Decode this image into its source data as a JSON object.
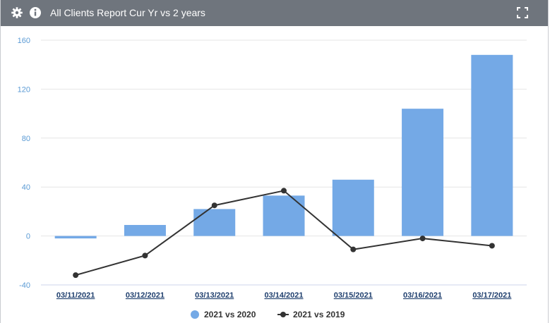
{
  "header": {
    "title": "All Clients Report Cur Yr vs 2 years",
    "icons": [
      "gear-icon",
      "info-icon",
      "expand-icon"
    ],
    "background": "#6f757d"
  },
  "chart_data": {
    "type": "bar",
    "categories": [
      "03/11/2021",
      "03/12/2021",
      "03/13/2021",
      "03/14/2021",
      "03/15/2021",
      "03/16/2021",
      "03/17/2021"
    ],
    "series": [
      {
        "name": "2021 vs 2020",
        "type": "bar",
        "color": "#74a9e6",
        "values": [
          -2,
          9,
          22,
          33,
          46,
          104,
          148
        ]
      },
      {
        "name": "2021 vs 2019",
        "type": "line",
        "color": "#333333",
        "values": [
          -32,
          -16,
          25,
          37,
          -11,
          -2,
          -8
        ]
      }
    ],
    "yticks": [
      -40,
      0,
      40,
      80,
      120,
      160
    ],
    "ylim": [
      -40,
      160
    ],
    "grid": true,
    "legend": "bottom-center"
  }
}
